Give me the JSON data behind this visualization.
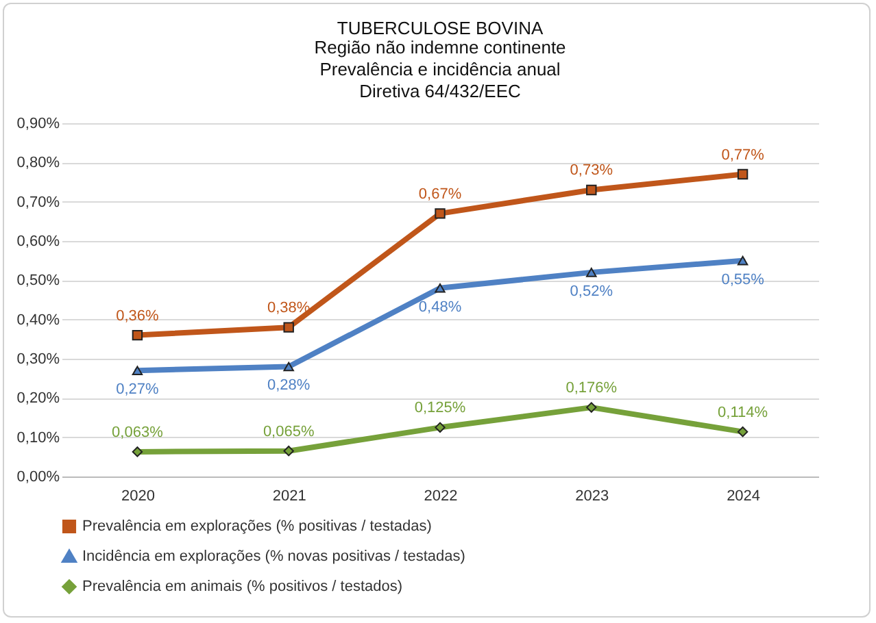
{
  "chart_data": {
    "type": "line",
    "title": "TUBERCULOSE BOVINA",
    "subtitle": "Região não indemne continente\nPrevalência e incidência anual\nDiretiva 64/432/EEC",
    "categories": [
      "2020",
      "2021",
      "2022",
      "2023",
      "2024"
    ],
    "series": [
      {
        "name": "Prevalência em explorações (% positivas / testadas)",
        "color": "#c0561a",
        "marker": "square",
        "values": [
          0.36,
          0.38,
          0.67,
          0.73,
          0.77
        ],
        "value_labels": [
          "0,36%",
          "0,38%",
          "0,67%",
          "0,73%",
          "0,77%"
        ]
      },
      {
        "name": "Incidência em explorações (% novas positivas / testadas)",
        "color": "#4f81c4",
        "marker": "triangle",
        "values": [
          0.27,
          0.28,
          0.48,
          0.52,
          0.55
        ],
        "value_labels": [
          "0,27%",
          "0,28%",
          "0,48%",
          "0,52%",
          "0,55%"
        ]
      },
      {
        "name": "Prevalência em animais (% positivos / testados)",
        "color": "#76a13a",
        "marker": "diamond",
        "values": [
          0.063,
          0.065,
          0.125,
          0.176,
          0.114
        ],
        "value_labels": [
          "0,063%",
          "0,065%",
          "0,125%",
          "0,176%",
          "0,114%"
        ]
      }
    ],
    "ylim": [
      0,
      0.9
    ],
    "yticks": [
      {
        "value": 0,
        "label": "0,00%"
      },
      {
        "value": 0.1,
        "label": "0,10%"
      },
      {
        "value": 0.2,
        "label": "0,20%"
      },
      {
        "value": 0.3,
        "label": "0,30%"
      },
      {
        "value": 0.4,
        "label": "0,40%"
      },
      {
        "value": 0.5,
        "label": "0,50%"
      },
      {
        "value": 0.6,
        "label": "0,60%"
      },
      {
        "value": 0.7,
        "label": "0,70%"
      },
      {
        "value": 0.8,
        "label": "0,80%"
      },
      {
        "value": 0.9,
        "label": "0,90%"
      }
    ],
    "grid": "y",
    "legend": "bottom",
    "line_style": "solid"
  }
}
